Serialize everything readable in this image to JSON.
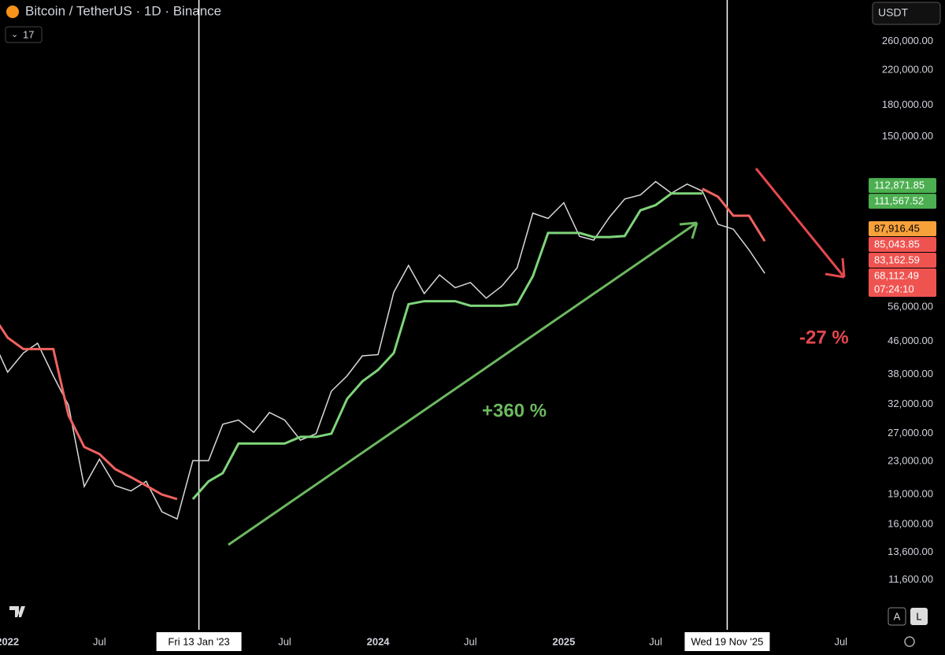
{
  "header": {
    "symbol": "Bitcoin / TetherUS · 1D · Binance",
    "indicator_count": "17",
    "currency": "USDT",
    "auto_button": "A",
    "log_button": "L"
  },
  "chart_data": {
    "type": "line",
    "log_scale": true,
    "x": [
      "2021-12",
      "2022-01",
      "2022-02",
      "2022-03",
      "2022-04",
      "2022-05",
      "2022-06",
      "2022-07",
      "2022-08",
      "2022-09",
      "2022-10",
      "2022-11",
      "2022-12",
      "2023-01",
      "2023-02",
      "2023-03",
      "2023-04",
      "2023-05",
      "2023-06",
      "2023-07",
      "2023-08",
      "2023-09",
      "2023-10",
      "2023-11",
      "2023-12",
      "2024-01",
      "2024-02",
      "2024-03",
      "2024-04",
      "2024-05",
      "2024-06",
      "2024-07",
      "2024-08",
      "2024-09",
      "2024-10",
      "2024-11",
      "2024-12",
      "2025-01",
      "2025-02",
      "2025-03",
      "2025-04",
      "2025-05",
      "2025-06",
      "2025-07",
      "2025-08",
      "2025-09",
      "2025-10",
      "2025-11",
      "2025-12",
      "2026-01",
      "2026-02"
    ],
    "series": [
      {
        "color": "#d9d9d9",
        "values": [
          47000,
          38500,
          43000,
          45500,
          37700,
          31800,
          19900,
          23300,
          20000,
          19400,
          20500,
          17200,
          16500,
          23100,
          23100,
          28500,
          29200,
          27200,
          30500,
          29200,
          26000,
          27000,
          34500,
          37700,
          42300,
          42600,
          61100,
          71300,
          60600,
          67500,
          62700,
          64600,
          59000,
          63300,
          70300,
          96400,
          93500,
          102400,
          84300,
          82500,
          94200,
          104600,
          107100,
          115700,
          108200,
          114000,
          109500,
          90400,
          87900,
          78000,
          68112
        ]
      },
      {
        "color": "#f0625f",
        "values": [
          54000,
          47000,
          44000,
          44000,
          44000,
          30000,
          25000,
          24000,
          22000,
          21000,
          20000,
          19000,
          18500,
          null,
          null,
          null,
          null,
          null,
          null,
          null,
          null,
          null,
          null,
          null,
          null,
          null,
          null,
          null,
          null,
          null,
          null,
          null,
          null,
          null,
          null,
          null,
          null,
          null,
          null,
          null,
          null,
          null,
          null,
          null,
          null,
          null,
          111000,
          106000,
          95000,
          95000,
          82000
        ]
      },
      {
        "color": "#7fd47a",
        "values": [
          null,
          null,
          null,
          null,
          null,
          null,
          null,
          null,
          null,
          null,
          null,
          null,
          null,
          18500,
          20500,
          21500,
          25500,
          25500,
          25500,
          25500,
          26500,
          26500,
          27000,
          33000,
          36500,
          39000,
          43000,
          57000,
          58000,
          58000,
          58000,
          56500,
          56500,
          56500,
          57000,
          67000,
          86000,
          86000,
          86000,
          84000,
          84000,
          84500,
          98000,
          101000,
          108000,
          108000,
          108000,
          null,
          null,
          null,
          null
        ]
      }
    ],
    "xlim": [
      "2021-12-17",
      "2026-08-20"
    ],
    "xticks": [
      {
        "value": "2022-01-01",
        "label": "2022"
      },
      {
        "value": "2022-07-01",
        "label": "Jul"
      },
      {
        "value": "2023-01-13",
        "label": "Fri 13 Jan '23"
      },
      {
        "value": "2023-07-01",
        "label": "Jul"
      },
      {
        "value": "2024-01-01",
        "label": "2024"
      },
      {
        "value": "2024-07-01",
        "label": "Jul"
      },
      {
        "value": "2025-01-01",
        "label": "2025"
      },
      {
        "value": "2025-07-01",
        "label": "Jul"
      },
      {
        "value": "2025-11-19",
        "label": "Wed 19 Nov '25"
      },
      {
        "value": "2026-07-01",
        "label": "Jul"
      }
    ],
    "ylim": [
      8700,
      330000
    ],
    "yticks": [
      {
        "value": 260000,
        "label": "260,000.00"
      },
      {
        "value": 220000,
        "label": "220,000.00"
      },
      {
        "value": 180000,
        "label": "180,000.00"
      },
      {
        "value": 150000,
        "label": "150,000.00"
      },
      {
        "value": 56000,
        "label": "56,000.00"
      },
      {
        "value": 46000,
        "label": "46,000.00"
      },
      {
        "value": 38000,
        "label": "38,000.00"
      },
      {
        "value": 32000,
        "label": "32,000.00"
      },
      {
        "value": 27000,
        "label": "27,000.00"
      },
      {
        "value": 23000,
        "label": "23,000.00"
      },
      {
        "value": 19000,
        "label": "19,000.00"
      },
      {
        "value": 16000,
        "label": "16,000.00"
      },
      {
        "value": 13600,
        "label": "13,600.00"
      },
      {
        "value": 11600,
        "label": "11,600.00"
      }
    ],
    "price_badges": [
      {
        "value": 112871.85,
        "label": "112,871.85",
        "color": "#4caf50"
      },
      {
        "value": 111567.52,
        "label": "111,567.52",
        "color": "#4caf50"
      },
      {
        "value": 87916.45,
        "label": "87,916.45",
        "color": "#f7a13b"
      },
      {
        "value": 85043.85,
        "label": "85,043.85",
        "color": "#ef5350"
      },
      {
        "value": 83162.59,
        "label": "83,162.59",
        "color": "#ef5350"
      },
      {
        "value": 68112.49,
        "label": "68,112.49",
        "color": "#ef5350",
        "countdown": "07:24:10"
      }
    ],
    "annotations": [
      {
        "text": "+360 %",
        "color": "#6cb85f"
      },
      {
        "text": "-27 %",
        "color": "#e5484d"
      }
    ]
  }
}
